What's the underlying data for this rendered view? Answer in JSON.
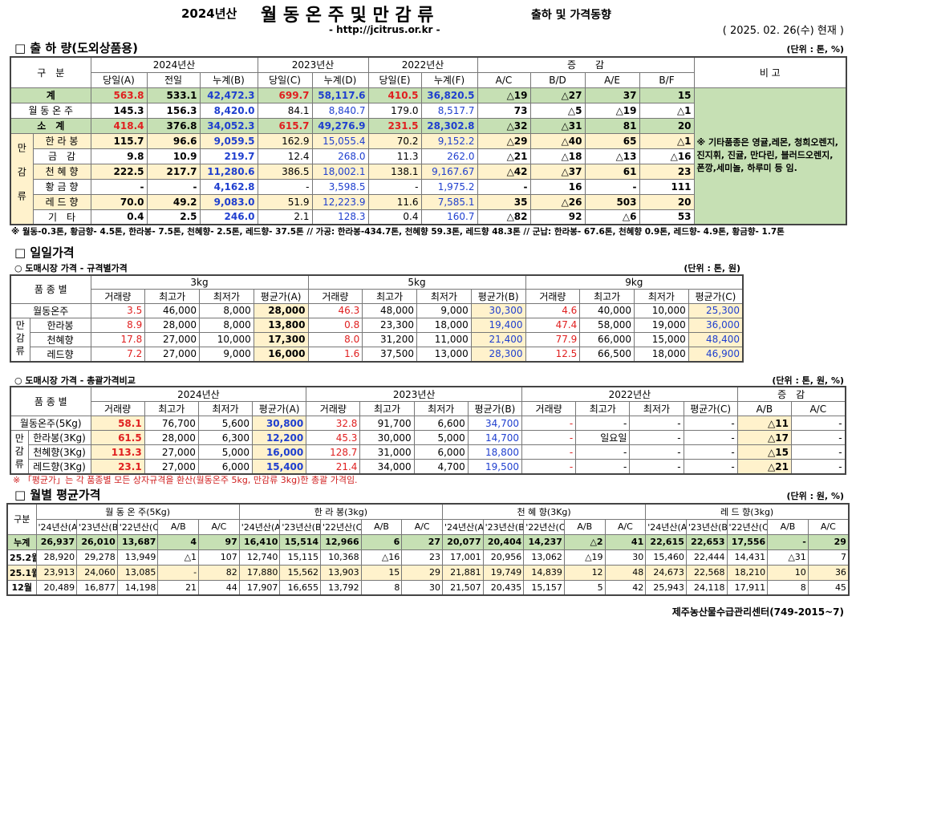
{
  "header": {
    "year": "2024년산",
    "title": "월 동 온 주 및 만 감 류",
    "subtitle": "출하 및 가격동향",
    "url": "- http://jcitrus.or.kr -",
    "date": "( 2025. 02. 26(수) 현재 )"
  },
  "shipment": {
    "title": "□ 출 하 량(도외상품용)",
    "unit": "(단위 : 톤, %)",
    "header_top": [
      "구　분",
      "2024년산",
      "2023년산",
      "2022년산",
      "증　　감",
      "비 고"
    ],
    "header_sub": [
      "당일(A)",
      "전일",
      "누계(B)",
      "당일(C)",
      "누계(D)",
      "당일(E)",
      "누계(F)",
      "A/C",
      "B/D",
      "A/E",
      "B/F"
    ],
    "group": "만감류",
    "rows": [
      {
        "label": "계",
        "values": [
          "563.8",
          "533.1",
          "42,472.3",
          "699.7",
          "58,117.6",
          "410.5",
          "36,820.5",
          "△19",
          "△27",
          "37",
          "15"
        ]
      },
      {
        "label": "월 동 온 주",
        "values": [
          "145.3",
          "156.3",
          "8,420.0",
          "84.1",
          "8,840.7",
          "179.0",
          "8,517.7",
          "73",
          "△5",
          "△19",
          "△1"
        ]
      },
      {
        "label": "소　계",
        "values": [
          "418.4",
          "376.8",
          "34,052.3",
          "615.7",
          "49,276.9",
          "231.5",
          "28,302.8",
          "△32",
          "△31",
          "81",
          "20"
        ]
      },
      {
        "label": "한 라 봉",
        "values": [
          "115.7",
          "96.6",
          "9,059.5",
          "162.9",
          "15,055.4",
          "70.2",
          "9,152.2",
          "△29",
          "△40",
          "65",
          "△1"
        ]
      },
      {
        "label": "금　감",
        "values": [
          "9.8",
          "10.9",
          "219.7",
          "12.4",
          "268.0",
          "11.3",
          "262.0",
          "△21",
          "△18",
          "△13",
          "△16"
        ]
      },
      {
        "label": "천 혜 향",
        "values": [
          "222.5",
          "217.7",
          "11,280.6",
          "386.5",
          "18,002.1",
          "138.1",
          "9,167.67",
          "△42",
          "△37",
          "61",
          "23"
        ]
      },
      {
        "label": "황 금 향",
        "values": [
          "-",
          "-",
          "4,162.8",
          "-",
          "3,598.5",
          "-",
          "1,975.2",
          "-",
          "16",
          "-",
          "111"
        ]
      },
      {
        "label": "레 드 향",
        "values": [
          "70.0",
          "49.2",
          "9,083.0",
          "51.9",
          "12,223.9",
          "11.6",
          "7,585.1",
          "35",
          "△26",
          "503",
          "20"
        ]
      },
      {
        "label": "기　타",
        "values": [
          "0.4",
          "2.5",
          "246.0",
          "2.1",
          "128.3",
          "0.4",
          "160.7",
          "△82",
          "92",
          "△6",
          "53"
        ]
      }
    ],
    "note": "※ 기타품종은 영귤,레몬, 청희오렌지, 진지휘, 진귤, 만다린, 블러드오렌지, 폰깡,세미놀, 하루미 등 임.",
    "footnote": "※ 월동-0.3톤, 황금향- 4.5톤, 한라봉- 7.5톤, 천혜향- 2.5톤, 레드향- 37.5톤  //  가공:  한라봉-434.7톤, 천혜향 59.3톤, 레드향 48.3톤 //  군납: 한라봉- 67.6톤, 천혜향 0.9톤, 레드향- 4.9톤, 황금향- 1.7톤"
  },
  "daily": {
    "title": "□ 일일가격",
    "size_price": {
      "title": "○ 도매시장 가격 - 규격별가격",
      "unit": "(단위 : 톤, 원)",
      "header_top": [
        "품 종 별",
        "3kg",
        "5kg",
        "9kg"
      ],
      "header_sub": [
        "거래량",
        "최고가",
        "최저가",
        "평균가(A)",
        "거래량",
        "최고가",
        "최저가",
        "평균가(B)",
        "거래량",
        "최고가",
        "최저가",
        "평균가(C)"
      ],
      "group": "만감류",
      "rows": [
        {
          "label": "월동온주",
          "values": [
            "3.5",
            "46,000",
            "8,000",
            "28,000",
            "46.3",
            "48,000",
            "9,000",
            "30,300",
            "4.6",
            "40,000",
            "10,000",
            "25,300"
          ]
        },
        {
          "label": "한라봉",
          "values": [
            "8.9",
            "28,000",
            "8,000",
            "13,800",
            "0.8",
            "23,300",
            "18,000",
            "19,400",
            "47.4",
            "58,000",
            "19,000",
            "36,000"
          ]
        },
        {
          "label": "천혜향",
          "values": [
            "17.8",
            "27,000",
            "10,000",
            "17,300",
            "8.0",
            "31,200",
            "11,000",
            "21,400",
            "77.9",
            "66,000",
            "15,000",
            "48,400"
          ]
        },
        {
          "label": "레드향",
          "values": [
            "7.2",
            "27,000",
            "9,000",
            "16,000",
            "1.6",
            "37,500",
            "13,000",
            "28,300",
            "12.5",
            "66,500",
            "18,000",
            "46,900"
          ]
        }
      ]
    },
    "total_price": {
      "title": "○ 도매시장 가격 - 총괄가격비교",
      "unit": "(단위 : 톤, 원, %)",
      "header_top": [
        "품 종 별",
        "2024년산",
        "2023년산",
        "2022년산",
        "증　감"
      ],
      "header_sub": [
        "거래량",
        "최고가",
        "최저가",
        "평균가(A)",
        "거래량",
        "최고가",
        "최저가",
        "평균가(B)",
        "거래량",
        "최고가",
        "최저가",
        "평균가(C)",
        "A/B",
        "A/C"
      ],
      "group": "만감류",
      "rows": [
        {
          "label": "월동온주(5Kg)",
          "values": [
            "58.1",
            "76,700",
            "5,600",
            "30,800",
            "32.8",
            "91,700",
            "6,600",
            "34,700",
            "-",
            "-",
            "-",
            "-",
            "△11",
            "-"
          ]
        },
        {
          "label": "한라봉(3Kg)",
          "values": [
            "61.5",
            "28,000",
            "6,300",
            "12,200",
            "45.3",
            "30,000",
            "5,000",
            "14,700",
            "-",
            "일요일",
            "-",
            "-",
            "△17",
            "-"
          ]
        },
        {
          "label": "천혜향(3Kg)",
          "values": [
            "113.3",
            "27,000",
            "5,000",
            "16,000",
            "128.7",
            "31,000",
            "6,000",
            "18,800",
            "-",
            "-",
            "-",
            "-",
            "△15",
            "-"
          ]
        },
        {
          "label": "레드향(3Kg)",
          "values": [
            "23.1",
            "27,000",
            "6,000",
            "15,400",
            "21.4",
            "34,000",
            "4,700",
            "19,500",
            "-",
            "-",
            "-",
            "-",
            "△21",
            "-"
          ]
        }
      ],
      "note": "※ 「평균가」는 각 품종별 모든 상자규격을 환산(월동온주 5kg, 만감류 3kg)한 총괄 가격임."
    }
  },
  "monthly": {
    "title": "□ 월별 평균가격",
    "unit": "(단위 : 원, %)",
    "header_top": [
      "구분",
      "월 동 온 주(5Kg)",
      "한 라 봉(3kg)",
      "천 혜 향(3Kg)",
      "레 드 향(3kg)"
    ],
    "header_sub": [
      "'24년산(A)",
      "'23년산(B)",
      "'22년산(C)",
      "A/B",
      "A/C",
      "'24년산(A)",
      "'23년산(B)",
      "'22년산(C)",
      "A/B",
      "A/C",
      "'24년산(A)",
      "'23년산(B)",
      "'22년산(C)",
      "A/B",
      "A/C",
      "'24년산(A)",
      "'23년산(B)",
      "'22년산(C)",
      "A/B",
      "A/C"
    ],
    "rows": [
      {
        "label": "누계",
        "values": [
          "26,937",
          "26,010",
          "13,687",
          "4",
          "97",
          "16,410",
          "15,514",
          "12,966",
          "6",
          "27",
          "20,077",
          "20,404",
          "14,237",
          "△2",
          "41",
          "22,615",
          "22,653",
          "17,556",
          "-",
          "29"
        ]
      },
      {
        "label": "25.2월",
        "values": [
          "28,920",
          "29,278",
          "13,949",
          "△1",
          "107",
          "12,740",
          "15,115",
          "10,368",
          "△16",
          "23",
          "17,001",
          "20,956",
          "13,062",
          "△19",
          "30",
          "15,460",
          "22,444",
          "14,431",
          "△31",
          "7"
        ]
      },
      {
        "label": "25.1월",
        "values": [
          "23,913",
          "24,060",
          "13,085",
          "-",
          "82",
          "17,880",
          "15,562",
          "13,903",
          "15",
          "29",
          "21,881",
          "19,749",
          "14,839",
          "12",
          "48",
          "24,673",
          "22,568",
          "18,210",
          "10",
          "36"
        ]
      },
      {
        "label": "12월",
        "values": [
          "20,489",
          "16,877",
          "14,198",
          "21",
          "44",
          "17,907",
          "16,655",
          "13,792",
          "8",
          "30",
          "21,507",
          "20,435",
          "15,157",
          "5",
          "42",
          "25,943",
          "24,118",
          "17,911",
          "8",
          "45"
        ]
      }
    ]
  },
  "footer": "제주농산물수급관리센터(749-2015~7)"
}
